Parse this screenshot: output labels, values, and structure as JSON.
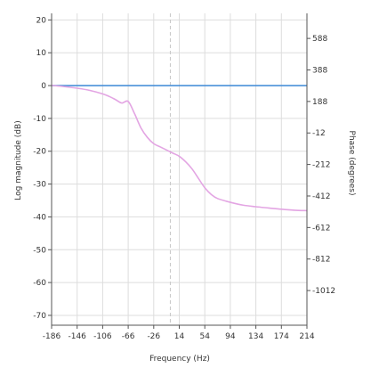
{
  "chart_data": {
    "type": "line",
    "xlabel": "Frequency (Hz)",
    "ylabel_left": "Log magnitude (dB)",
    "ylabel_right": "Phase (degrees)",
    "xlim": [
      -186,
      214
    ],
    "ylim_left": [
      -73,
      22
    ],
    "ylim_right": [
      -1232,
      747
    ],
    "x_ticks": [
      -186,
      -146,
      -106,
      -66,
      -26,
      14,
      54,
      94,
      134,
      174,
      214
    ],
    "y_ticks_left": [
      20,
      10,
      0,
      -10,
      -20,
      -30,
      -40,
      -50,
      -60,
      -70
    ],
    "y_ticks_right": [
      588,
      388,
      188,
      -12,
      -212,
      -412,
      -612,
      -812,
      -1012
    ],
    "grid": true,
    "vertical_marker_x": 0,
    "colors": {
      "magnitude": "#4a90d9",
      "phase": "#e3a5e3",
      "grid": "#dddddd",
      "marker": "#c8c8c8",
      "axis": "#555555"
    },
    "series": [
      {
        "axis": "left",
        "x": [
          -186,
          214
        ],
        "y": [
          0,
          0
        ]
      },
      {
        "axis": "right",
        "x": [
          -186,
          -166,
          -146,
          -126,
          -106,
          -96,
          -86,
          -76,
          -66,
          -56,
          -46,
          -36,
          -26,
          -16,
          -6,
          4,
          14,
          24,
          34,
          44,
          54,
          64,
          74,
          94,
          114,
          134,
          154,
          174,
          194,
          214
        ],
        "y": [
          290,
          282,
          272,
          258,
          236,
          220,
          200,
          178,
          188,
          110,
          20,
          -40,
          -80,
          -100,
          -120,
          -140,
          -160,
          -195,
          -240,
          -300,
          -360,
          -402,
          -428,
          -452,
          -470,
          -480,
          -488,
          -496,
          -502,
          -505
        ]
      }
    ]
  }
}
